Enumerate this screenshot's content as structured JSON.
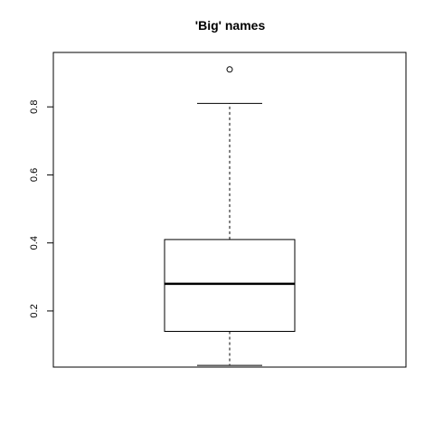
{
  "chart_data": {
    "type": "boxplot",
    "title": "'Big' names",
    "xlabel": "",
    "ylabel": "",
    "ylim": [
      0.035,
      0.96
    ],
    "yticks": [
      0.2,
      0.4,
      0.6,
      0.8
    ],
    "ytick_labels": [
      "0.2",
      "0.4",
      "0.6",
      "0.8"
    ],
    "box": {
      "whisker_low": 0.04,
      "q1": 0.14,
      "median": 0.28,
      "q3": 0.41,
      "whisker_high": 0.81,
      "outliers": [
        0.91
      ]
    },
    "colors": {
      "stroke": "#000000",
      "fill": "#ffffff"
    }
  }
}
